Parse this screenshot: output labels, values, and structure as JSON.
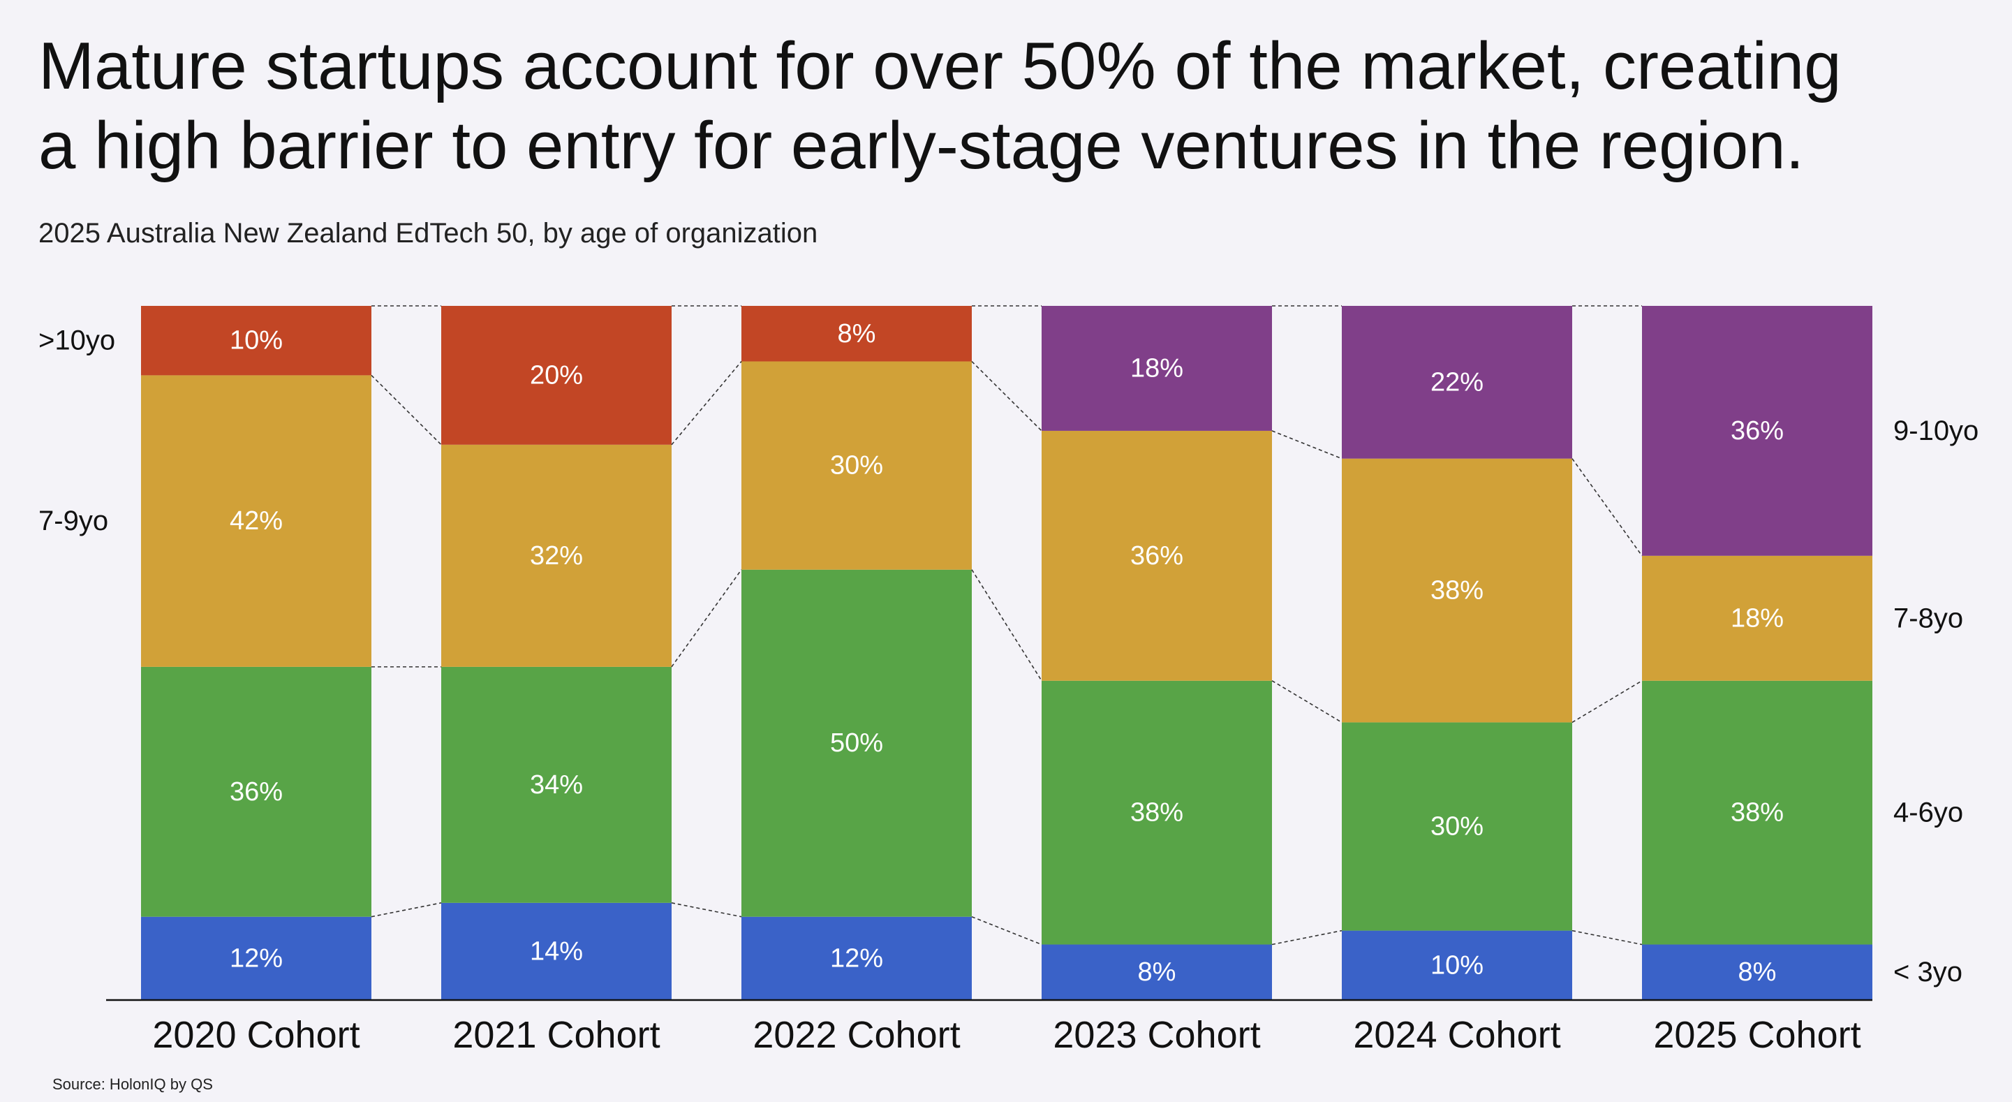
{
  "title": {
    "line1": "Mature startups account for over 50% of the market, creating",
    "line2": "a high barrier to entry for early-stage ventures in the region."
  },
  "subtitle": "2025 Australia New Zealand EdTech 50, by age of organization",
  "source": "Source: HolonIQ by QS",
  "colors": {
    "background": "#f4f3f8",
    "blue": "#3a62c8",
    "green": "#58a447",
    "yellow": "#d1a138",
    "red": "#c24625",
    "purple": "#803f89"
  },
  "chart_data": {
    "type": "bar",
    "stacked": true,
    "normalized": true,
    "categories": [
      "2020 Cohort",
      "2021 Cohort",
      "2022 Cohort",
      "2023 Cohort",
      "2024 Cohort",
      "2025 Cohort"
    ],
    "ylim": [
      0,
      100
    ],
    "columns": [
      {
        "cohort": "2020 Cohort",
        "segments": [
          {
            "label": "12%",
            "value": 12,
            "color": "blue"
          },
          {
            "label": "36%",
            "value": 36,
            "color": "green"
          },
          {
            "label": "42%",
            "value": 42,
            "color": "yellow"
          },
          {
            "label": "10%",
            "value": 10,
            "color": "red"
          }
        ]
      },
      {
        "cohort": "2021 Cohort",
        "segments": [
          {
            "label": "14%",
            "value": 14,
            "color": "blue"
          },
          {
            "label": "34%",
            "value": 34,
            "color": "green"
          },
          {
            "label": "32%",
            "value": 32,
            "color": "yellow"
          },
          {
            "label": "20%",
            "value": 20,
            "color": "red"
          }
        ]
      },
      {
        "cohort": "2022 Cohort",
        "segments": [
          {
            "label": "12%",
            "value": 12,
            "color": "blue"
          },
          {
            "label": "50%",
            "value": 50,
            "color": "green"
          },
          {
            "label": "30%",
            "value": 30,
            "color": "yellow"
          },
          {
            "label": "8%",
            "value": 8,
            "color": "red"
          }
        ]
      },
      {
        "cohort": "2023 Cohort",
        "segments": [
          {
            "label": "8%",
            "value": 8,
            "color": "blue"
          },
          {
            "label": "38%",
            "value": 38,
            "color": "green"
          },
          {
            "label": "36%",
            "value": 36,
            "color": "yellow"
          },
          {
            "label": "18%",
            "value": 18,
            "color": "purple"
          }
        ]
      },
      {
        "cohort": "2024 Cohort",
        "segments": [
          {
            "label": "10%",
            "value": 10,
            "color": "blue"
          },
          {
            "label": "30%",
            "value": 30,
            "color": "green"
          },
          {
            "label": "38%",
            "value": 38,
            "color": "yellow"
          },
          {
            "label": "22%",
            "value": 22,
            "color": "purple"
          }
        ]
      },
      {
        "cohort": "2025 Cohort",
        "segments": [
          {
            "label": "8%",
            "value": 8,
            "color": "blue"
          },
          {
            "label": "38%",
            "value": 38,
            "color": "green"
          },
          {
            "label": "18%",
            "value": 18,
            "color": "yellow"
          },
          {
            "label": "36%",
            "value": 36,
            "color": "purple"
          }
        ]
      }
    ],
    "left_legend": [
      {
        "label": ">10yo",
        "cohort_index": 0,
        "segment_index": 3
      },
      {
        "label": "7-9yo",
        "cohort_index": 0,
        "segment_index": 2
      }
    ],
    "right_legend": [
      {
        "label": "9-10yo",
        "cohort_index": 5,
        "segment_index": 3
      },
      {
        "label": "7-8yo",
        "cohort_index": 5,
        "segment_index": 2
      },
      {
        "label": "4-6yo",
        "cohort_index": 5,
        "segment_index": 1
      },
      {
        "label": "< 3yo",
        "cohort_index": 5,
        "segment_index": 0
      }
    ]
  }
}
